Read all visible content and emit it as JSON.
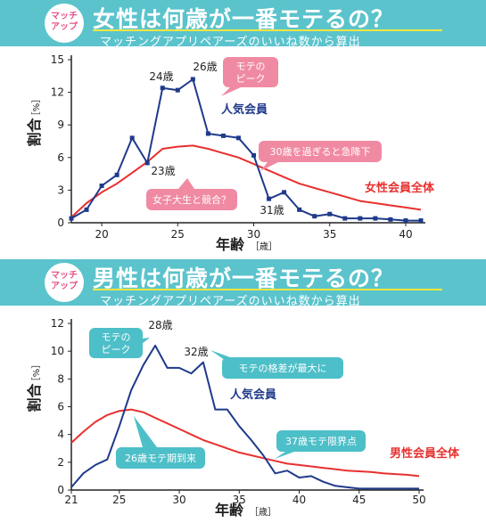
{
  "panels": [
    {
      "badge": [
        "マッチ",
        "アップ"
      ],
      "title": "女性は何歳が一番モテるの？",
      "subtitle": "マッチングアプリペアーズのいいね数から算出",
      "series_labels": [
        "人気会員",
        "女性会員全体"
      ],
      "callouts": [
        {
          "text": [
            "モテの",
            "ピーク"
          ],
          "color": "#f08aa2"
        },
        {
          "text": [
            "30歳を過ぎると急降下"
          ],
          "color": "#f08aa2"
        },
        {
          "text": [
            "女子大生と競合？"
          ],
          "color": "#f08aa2"
        }
      ],
      "point_labels": [
        "24歳",
        "26歳",
        "23歳",
        "31歳"
      ]
    },
    {
      "badge": [
        "マッチ",
        "アップ"
      ],
      "title": "男性は何歳が一番モテるの？",
      "subtitle": "マッチングアプリペアーズのいいね数から算出",
      "series_labels": [
        "人気会員",
        "男性会員全体"
      ],
      "callouts": [
        {
          "text": [
            "モテの",
            "ピーク"
          ],
          "color": "#4dbfc8"
        },
        {
          "text": [
            "モテの格差が最大に"
          ],
          "color": "#4dbfc8"
        },
        {
          "text": [
            "37歳モテ限界点"
          ],
          "color": "#4dbfc8"
        },
        {
          "text": [
            "26歳モテ期到来"
          ],
          "color": "#4dbfc8"
        }
      ],
      "point_labels": [
        "28歳",
        "32歳"
      ]
    }
  ],
  "chart_data": [
    {
      "type": "line",
      "xlabel": "年齢",
      "xlabel_unit": "［歳］",
      "ylabel": "割合",
      "ylabel_unit": "［%］",
      "xlim": [
        18,
        41
      ],
      "ylim": [
        0,
        15
      ],
      "xticks": [
        20,
        25,
        30,
        35,
        40
      ],
      "yticks": [
        0,
        3,
        6,
        9,
        12,
        15
      ],
      "grid": false,
      "series": [
        {
          "name": "人気会員",
          "color": "#1f3a8a",
          "markers": true,
          "x": [
            18,
            19,
            20,
            21,
            22,
            23,
            24,
            25,
            26,
            27,
            28,
            29,
            30,
            31,
            32,
            33,
            34,
            35,
            36,
            37,
            38,
            39,
            40,
            41
          ],
          "y": [
            0.4,
            1.2,
            3.4,
            4.4,
            7.8,
            5.5,
            12.4,
            12.2,
            13.2,
            8.2,
            8.0,
            7.8,
            6.2,
            2.2,
            2.8,
            1.2,
            0.6,
            0.8,
            0.4,
            0.4,
            0.4,
            0.3,
            0.2,
            0.2
          ]
        },
        {
          "name": "女性会員全体",
          "color": "#e8302f",
          "markers": false,
          "x": [
            18,
            19,
            20,
            21,
            22,
            23,
            24,
            25,
            26,
            27,
            28,
            29,
            30,
            31,
            32,
            33,
            34,
            35,
            36,
            37,
            38,
            39,
            40,
            41
          ],
          "y": [
            0.5,
            1.8,
            2.8,
            3.6,
            4.6,
            5.6,
            6.8,
            7.0,
            7.1,
            6.8,
            6.4,
            6.0,
            5.4,
            4.8,
            4.2,
            3.6,
            3.2,
            2.8,
            2.4,
            2.0,
            1.8,
            1.6,
            1.4,
            1.2
          ]
        }
      ]
    },
    {
      "type": "line",
      "xlabel": "年齢",
      "xlabel_unit": "［歳］",
      "ylabel": "割合",
      "ylabel_unit": "［%］",
      "xlim": [
        21,
        50
      ],
      "ylim": [
        0,
        12
      ],
      "xticks": [
        21,
        25,
        30,
        35,
        40,
        45,
        50
      ],
      "yticks": [
        0,
        2,
        4,
        6,
        8,
        10,
        12
      ],
      "grid": false,
      "series": [
        {
          "name": "人気会員",
          "color": "#1f3a8a",
          "markers": false,
          "x": [
            21,
            22,
            23,
            24,
            25,
            26,
            27,
            28,
            29,
            30,
            31,
            32,
            33,
            34,
            35,
            36,
            37,
            38,
            39,
            40,
            41,
            42,
            43,
            44,
            45,
            46,
            47,
            48,
            49,
            50
          ],
          "y": [
            0.2,
            1.2,
            1.8,
            2.2,
            4.6,
            7.2,
            9.0,
            10.4,
            8.8,
            8.8,
            8.4,
            9.2,
            5.8,
            5.8,
            4.6,
            3.6,
            2.5,
            1.2,
            1.4,
            0.9,
            1.0,
            0.6,
            0.3,
            0.2,
            0.1,
            0.1,
            0.1,
            0.1,
            0.1,
            0.1
          ]
        },
        {
          "name": "男性会員全体",
          "color": "#e8302f",
          "markers": false,
          "x": [
            21,
            22,
            23,
            24,
            25,
            26,
            27,
            28,
            29,
            30,
            31,
            32,
            33,
            34,
            35,
            36,
            37,
            38,
            39,
            40,
            41,
            42,
            43,
            44,
            45,
            46,
            47,
            48,
            49,
            50
          ],
          "y": [
            3.4,
            4.2,
            4.9,
            5.4,
            5.7,
            5.8,
            5.6,
            5.2,
            4.8,
            4.4,
            4.0,
            3.6,
            3.3,
            3.0,
            2.7,
            2.5,
            2.3,
            2.1,
            1.9,
            1.8,
            1.7,
            1.6,
            1.5,
            1.4,
            1.35,
            1.3,
            1.2,
            1.15,
            1.1,
            1.0
          ]
        }
      ]
    }
  ]
}
